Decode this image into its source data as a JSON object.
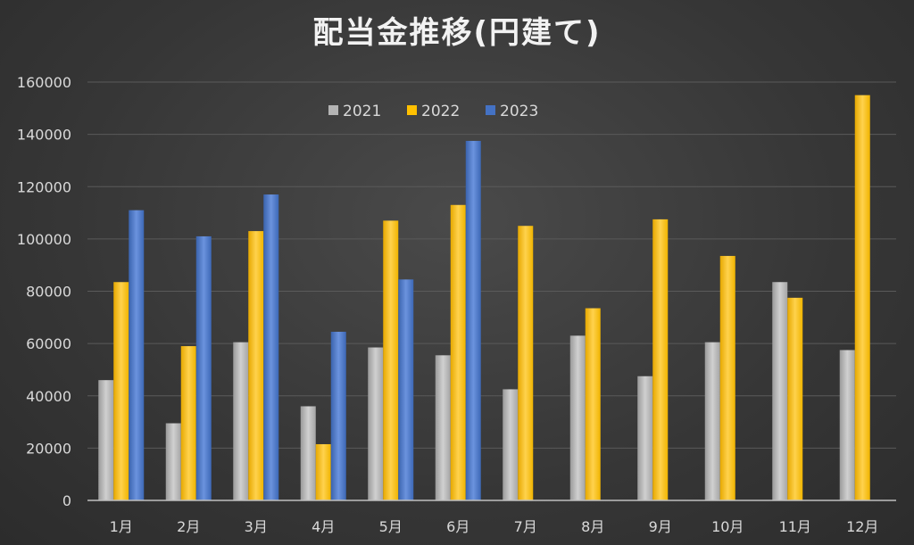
{
  "chart_data": {
    "type": "bar",
    "title": "配当金推移(円建て)",
    "categories": [
      "1月",
      "2月",
      "3月",
      "4月",
      "5月",
      "6月",
      "7月",
      "8月",
      "9月",
      "10月",
      "11月",
      "12月"
    ],
    "series": [
      {
        "name": "2021",
        "color": "#b4b4b4",
        "values": [
          46000,
          29500,
          60500,
          36000,
          58500,
          55500,
          42500,
          63000,
          47500,
          60500,
          83500,
          57500
        ]
      },
      {
        "name": "2022",
        "color": "#ffc000",
        "values": [
          83500,
          59000,
          103000,
          21500,
          107000,
          113000,
          105000,
          73500,
          107500,
          93500,
          77500,
          155000
        ]
      },
      {
        "name": "2023",
        "color": "#4472c4",
        "values": [
          111000,
          101000,
          117000,
          64500,
          84500,
          137500,
          null,
          null,
          null,
          null,
          null,
          null
        ]
      }
    ],
    "ylim": [
      0,
      160000
    ],
    "yticks": [
      0,
      20000,
      40000,
      60000,
      80000,
      100000,
      120000,
      140000,
      160000
    ],
    "grid": true,
    "legend": "top-center"
  }
}
